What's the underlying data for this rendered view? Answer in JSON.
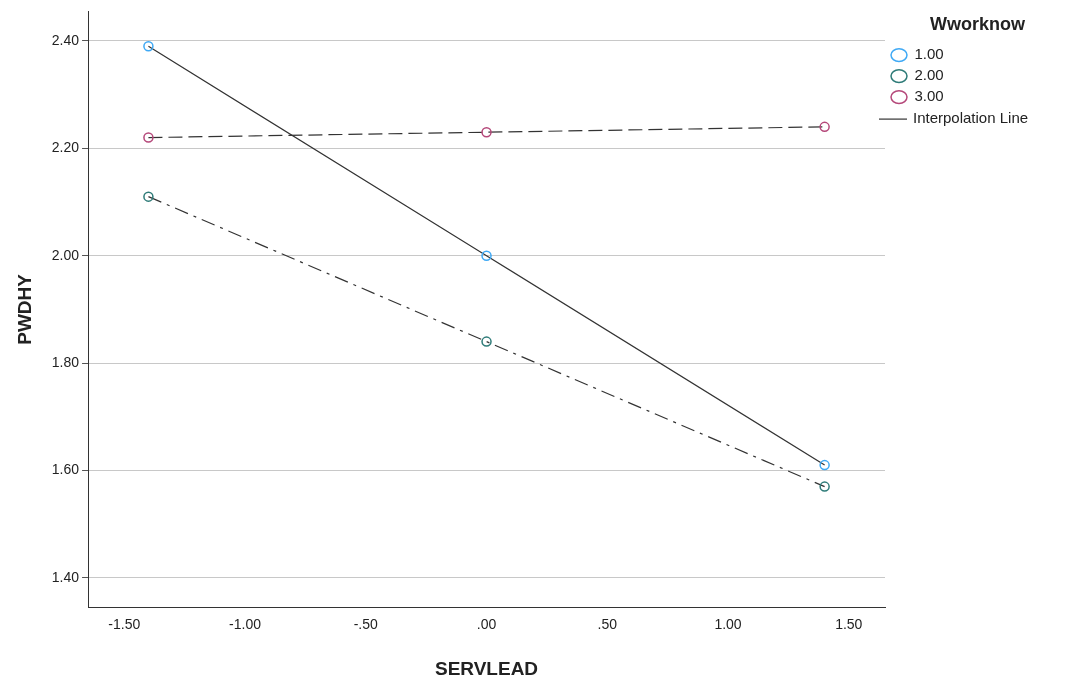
{
  "chart_data": {
    "type": "line",
    "xlabel": "SERVLEAD",
    "ylabel": "PWDHY",
    "legend_title": "Wworknow",
    "x": [
      -1.4,
      0,
      1.4
    ],
    "series": [
      {
        "name": "1.00",
        "color": "#3fa9f5",
        "values": [
          2.39,
          2.0,
          1.61
        ],
        "line_style": "solid"
      },
      {
        "name": "2.00",
        "color": "#2e7b78",
        "values": [
          2.11,
          1.84,
          1.57
        ],
        "line_style": "dashdot"
      },
      {
        "name": "3.00",
        "color": "#b5487a",
        "values": [
          2.22,
          2.23,
          2.24
        ],
        "line_style": "dashed"
      }
    ],
    "xlim": [
      -1.65,
      1.65
    ],
    "ylim": [
      1.345,
      2.455
    ],
    "xticks": [
      {
        "value": -1.5,
        "label": "-1.50"
      },
      {
        "value": -1,
        "label": "-1.00"
      },
      {
        "value": -0.5,
        "label": "-.50"
      },
      {
        "value": 0,
        "label": ".00"
      },
      {
        "value": 0.5,
        "label": ".50"
      },
      {
        "value": 1,
        "label": "1.00"
      },
      {
        "value": 1.5,
        "label": "1.50"
      }
    ],
    "yticks": [
      {
        "value": 1.4,
        "label": "1.40"
      },
      {
        "value": 1.6,
        "label": "1.60"
      },
      {
        "value": 1.8,
        "label": "1.80"
      },
      {
        "value": 2.0,
        "label": "2.00"
      },
      {
        "value": 2.2,
        "label": "2.20"
      },
      {
        "value": 2.4,
        "label": "2.40"
      }
    ],
    "grid": "y",
    "legend": "top right",
    "marker": "circle",
    "annotations": [
      "Interpolation Line"
    ]
  }
}
